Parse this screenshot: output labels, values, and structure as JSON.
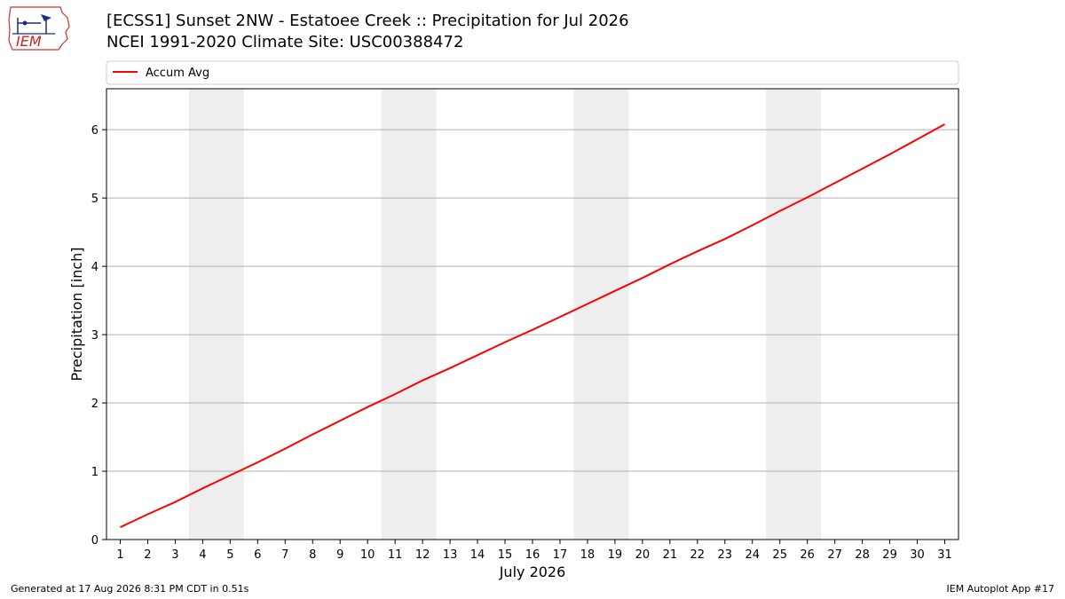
{
  "page": {
    "title_line1": "[ECSS1] Sunset 2NW - Estatoee Creek :: Precipitation for Jul 2026",
    "title_line2": "NCEI 1991-2020 Climate Site: USC00388472",
    "footer_left": "Generated at 17 Aug 2026 8:31 PM CDT in 0.51s",
    "footer_right": "IEM Autoplot App #17",
    "logo_text": "IEM"
  },
  "chart_data": {
    "type": "line",
    "xlabel": "July 2026",
    "ylabel": "Precipitation [inch]",
    "x": [
      1,
      2,
      3,
      4,
      5,
      6,
      7,
      8,
      9,
      10,
      11,
      12,
      13,
      14,
      15,
      16,
      17,
      18,
      19,
      20,
      21,
      22,
      23,
      24,
      25,
      26,
      27,
      28,
      29,
      30,
      31
    ],
    "xticks": [
      "1",
      "2",
      "3",
      "4",
      "5",
      "6",
      "7",
      "8",
      "9",
      "10",
      "11",
      "12",
      "13",
      "14",
      "15",
      "16",
      "17",
      "18",
      "19",
      "20",
      "21",
      "22",
      "23",
      "24",
      "25",
      "26",
      "27",
      "28",
      "29",
      "30",
      "31"
    ],
    "xlim": [
      0.5,
      31.5
    ],
    "ylim": [
      0,
      6.6
    ],
    "yticks": [
      0,
      1,
      2,
      3,
      4,
      5,
      6
    ],
    "grid": "y",
    "legend_position": "top",
    "weekend_spans": [
      [
        3.5,
        5.5
      ],
      [
        10.5,
        12.5
      ],
      [
        17.5,
        19.5
      ],
      [
        24.5,
        26.5
      ]
    ],
    "colors": {
      "line": "#ff0000",
      "weekend": "#eeeeee",
      "grid": "#b0b0b0"
    },
    "series": [
      {
        "name": "Accum Avg",
        "values": [
          0.18,
          0.37,
          0.55,
          0.75,
          0.94,
          1.13,
          1.33,
          1.54,
          1.74,
          1.94,
          2.13,
          2.33,
          2.51,
          2.7,
          2.89,
          3.07,
          3.26,
          3.45,
          3.64,
          3.83,
          4.03,
          4.22,
          4.4,
          4.6,
          4.81,
          5.01,
          5.22,
          5.43,
          5.64,
          5.86,
          6.08
        ]
      }
    ]
  }
}
